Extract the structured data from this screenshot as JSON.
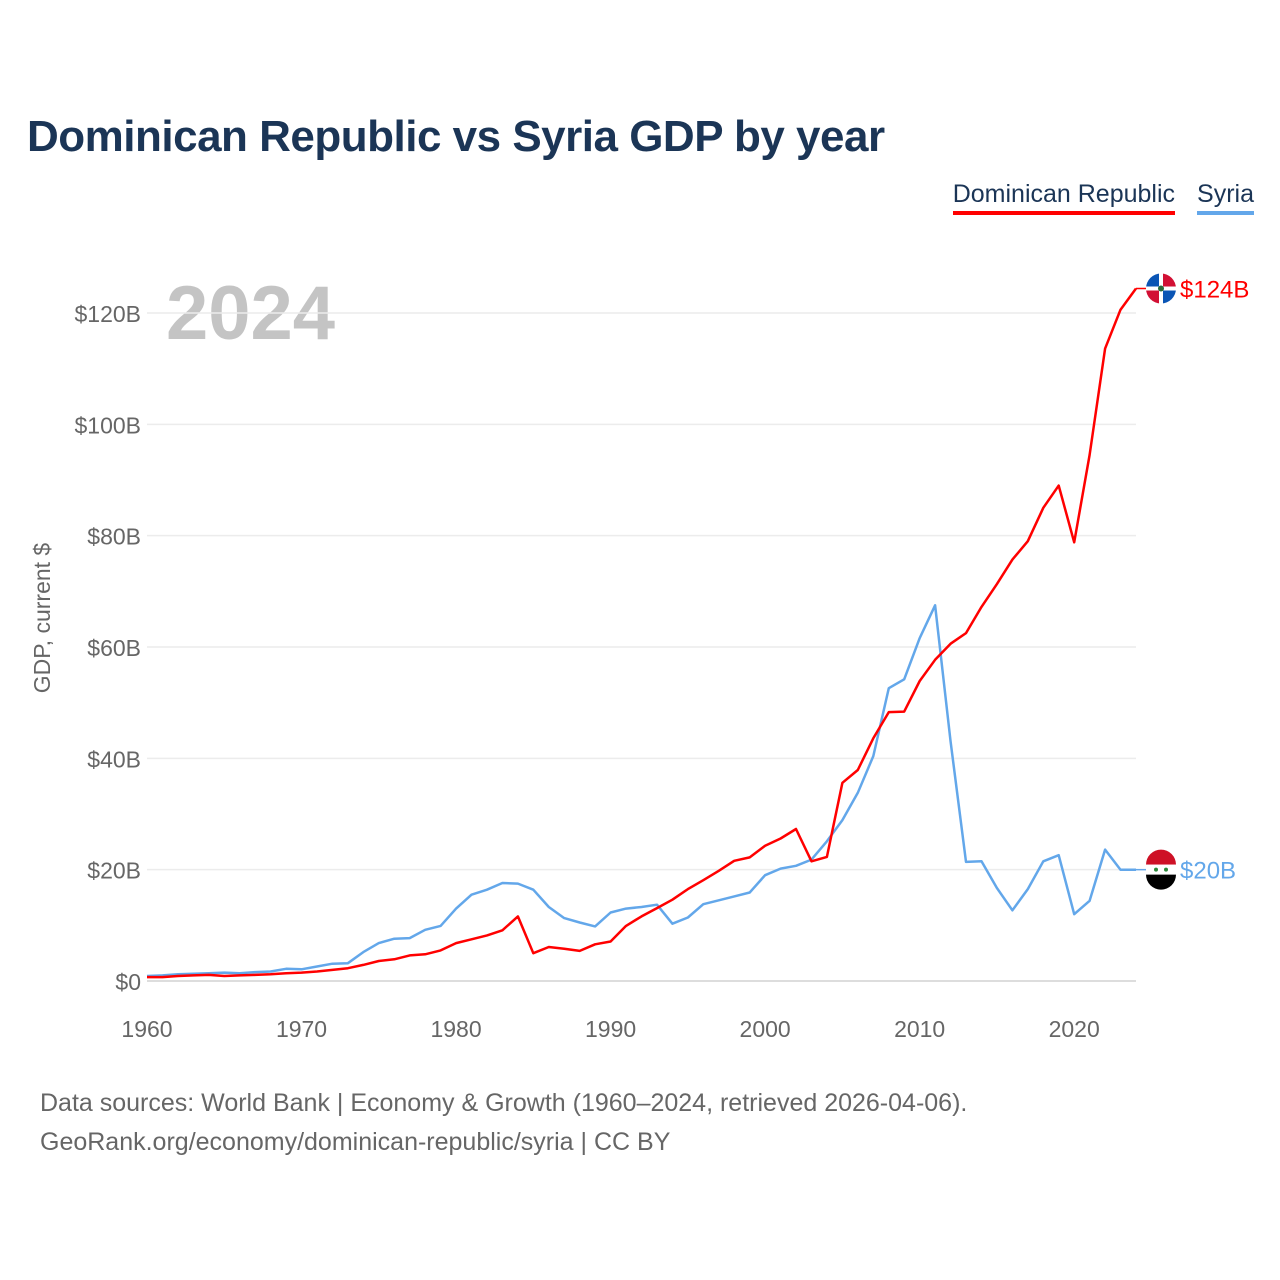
{
  "title": "Dominican Republic vs Syria GDP by year",
  "year_watermark": "2024",
  "footer": {
    "line1": "Data sources: World Bank | Economy & Growth (1960–2024, retrieved 2026-04-06).",
    "line2": "GeoRank.org/economy/dominican-republic/syria | CC BY"
  },
  "chart_data": {
    "type": "line",
    "title": "Dominican Republic vs Syria GDP by year",
    "xlabel": "",
    "ylabel": "GDP, current $",
    "xlim": [
      1960,
      2024
    ],
    "ylim": [
      0,
      130
    ],
    "x_ticks": [
      1960,
      1970,
      1980,
      1990,
      2000,
      2010,
      2020
    ],
    "y_ticks": [
      0,
      20,
      40,
      60,
      80,
      100,
      120
    ],
    "y_tick_labels": [
      "$0",
      "$20B",
      "$40B",
      "$60B",
      "$80B",
      "$100B",
      "$120B"
    ],
    "grid": true,
    "legend_position": "top-right",
    "x_start": 1960,
    "series": [
      {
        "name": "Dominican Republic",
        "color": "#ff0000",
        "end_label": "$124B",
        "flag": "dominican-republic-flag",
        "values": [
          0.7,
          0.7,
          0.9,
          1.0,
          1.1,
          0.9,
          1.0,
          1.1,
          1.2,
          1.4,
          1.5,
          1.7,
          2.0,
          2.3,
          2.9,
          3.6,
          3.9,
          4.6,
          4.8,
          5.5,
          6.8,
          7.5,
          8.2,
          9.1,
          11.6,
          5.0,
          6.1,
          5.8,
          5.4,
          6.6,
          7.1,
          9.9,
          11.6,
          13.1,
          14.6,
          16.5,
          18.1,
          19.8,
          21.6,
          22.2,
          24.3,
          25.6,
          27.3,
          21.5,
          22.3,
          35.6,
          37.9,
          43.6,
          48.3,
          48.4,
          53.9,
          57.7,
          60.6,
          62.5,
          67.2,
          71.3,
          75.7,
          79.0,
          85.0,
          89.0,
          78.8,
          94.5,
          113.6,
          120.6,
          124.4
        ]
      },
      {
        "name": "Syria",
        "color": "#63a7ea",
        "end_label": "$20B",
        "flag": "syria-flag",
        "values": [
          0.9,
          1.0,
          1.2,
          1.3,
          1.4,
          1.5,
          1.4,
          1.6,
          1.7,
          2.2,
          2.1,
          2.6,
          3.1,
          3.2,
          5.2,
          6.8,
          7.6,
          7.7,
          9.2,
          9.9,
          13.0,
          15.5,
          16.4,
          17.6,
          17.5,
          16.4,
          13.3,
          11.3,
          10.5,
          9.8,
          12.3,
          13.0,
          13.3,
          13.7,
          10.3,
          11.4,
          13.8,
          14.5,
          15.2,
          15.9,
          19.0,
          20.2,
          20.7,
          21.8,
          25.1,
          28.9,
          33.8,
          40.4,
          52.6,
          54.2,
          61.6,
          67.5,
          43.0,
          21.4,
          21.5,
          16.7,
          12.7,
          16.5,
          21.5,
          22.6,
          12.0,
          14.4,
          23.6,
          20.0,
          20.0
        ]
      }
    ]
  }
}
